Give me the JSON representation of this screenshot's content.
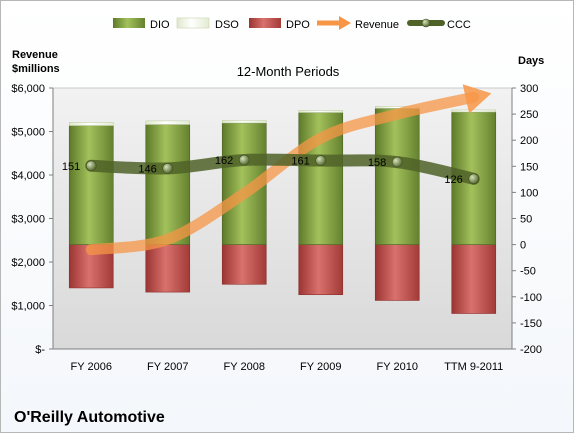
{
  "chart_data": {
    "type": "bar",
    "title": "12-Month Periods",
    "company": "O'Reilly Automotive",
    "categories": [
      "FY 2006",
      "FY 2007",
      "FY 2008",
      "FY 2009",
      "FY 2010",
      "TTM 9-2011"
    ],
    "left_axis": {
      "label_line1": "Revenue",
      "label_line2": "$millions",
      "range": [
        0,
        6000
      ],
      "ticks": [
        0,
        1000,
        2000,
        3000,
        4000,
        5000,
        6000
      ],
      "tick_labels": [
        "$-",
        "$1,000",
        "$2,000",
        "$3,000",
        "$4,000",
        "$5,000",
        "$6,000"
      ]
    },
    "right_axis": {
      "label": "Days",
      "range": [
        -200,
        300
      ],
      "ticks": [
        -200,
        -150,
        -100,
        -50,
        0,
        50,
        100,
        150,
        200,
        250,
        300
      ]
    },
    "series": [
      {
        "name": "DIO",
        "kind": "stacked-bar",
        "axis": "days",
        "color": "#77933c",
        "values": [
          228,
          230,
          233,
          253,
          261,
          254
        ]
      },
      {
        "name": "DSO",
        "kind": "stacked-bar",
        "axis": "days",
        "color": "#eaf1dd",
        "values": [
          6,
          7,
          5,
          4,
          4,
          4
        ]
      },
      {
        "name": "DPO",
        "kind": "negative-bar",
        "axis": "days",
        "color": "#c0504d",
        "values": [
          -83,
          -91,
          -76,
          -96,
          -107,
          -132
        ]
      },
      {
        "name": "Revenue",
        "kind": "arrow-line",
        "axis": "revenue",
        "color": "#f79646",
        "values": [
          2283,
          2522,
          3576,
          4847,
          5398,
          5788
        ]
      },
      {
        "name": "CCC",
        "kind": "line",
        "axis": "days",
        "color": "#4f6228",
        "values": [
          151,
          146,
          162,
          161,
          158,
          126
        ]
      }
    ],
    "legend_position": "top",
    "grid": false
  }
}
